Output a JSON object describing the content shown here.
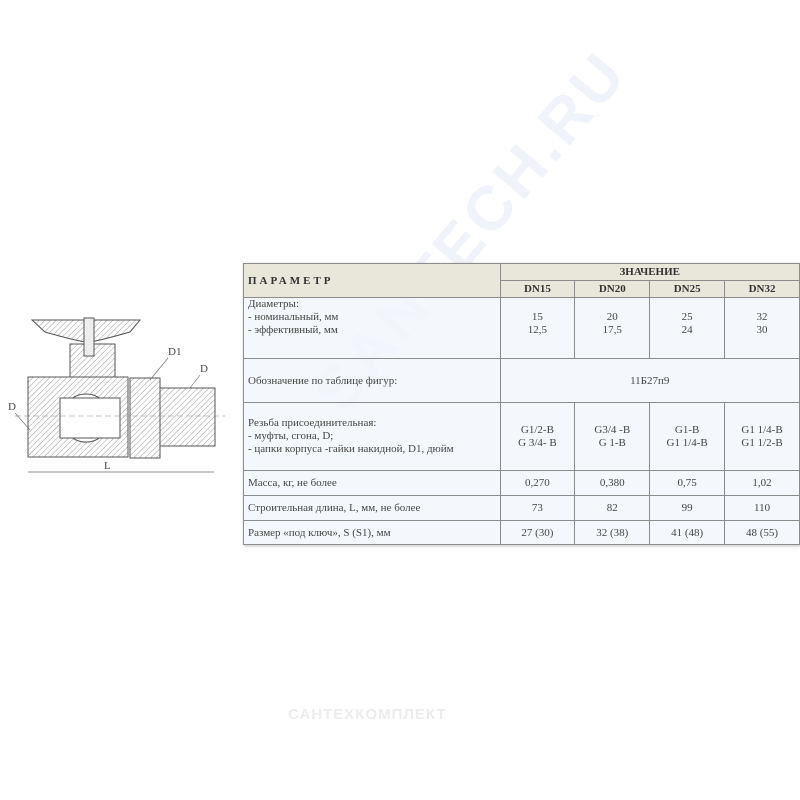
{
  "drawing": {
    "labels": {
      "d1": "D1",
      "d_right": "D",
      "d_left": "D",
      "length": "L"
    }
  },
  "table": {
    "param_header": "ПАРАМЕТР",
    "value_header": "ЗНАЧЕНИЕ",
    "columns": [
      "DN15",
      "DN20",
      "DN25",
      "DN32"
    ],
    "rows": {
      "diameters": {
        "label": [
          "Диаметры:",
          "- номинальный, мм",
          "- эффективный, мм"
        ],
        "values": [
          [
            "15",
            "12,5"
          ],
          [
            "20",
            "17,5"
          ],
          [
            "25",
            "24"
          ],
          [
            "32",
            "30"
          ]
        ]
      },
      "designation": {
        "label": "Обозначение по таблице фигур:",
        "value": "11Б27п9"
      },
      "thread": {
        "label": [
          "Резьба присоединительная:",
          "- муфты, сгона,  D;",
          " - цапки корпуса -гайки накидной, D1, дюйм"
        ],
        "values": [
          [
            "G1/2-B",
            "G 3/4- B"
          ],
          [
            "G3/4 -B",
            "G 1-B"
          ],
          [
            "G1-B",
            "G1 1/4-B"
          ],
          [
            "G1 1/4-B",
            "G1 1/2-B"
          ]
        ]
      },
      "mass": {
        "label": "Масса,  кг,  не более",
        "values": [
          "0,270",
          "0,380",
          "0,75",
          "1,02"
        ]
      },
      "length": {
        "label": "Строительная длина, L, мм, не более",
        "values": [
          "73",
          "82",
          "99",
          "110"
        ]
      },
      "wrench": {
        "label": "Размер «под ключ»,  S (S1),  мм",
        "values": [
          "27 (30)",
          "32 (38)",
          "41 (48)",
          "48 (55)"
        ]
      }
    }
  },
  "watermark": "SANTECH.RU",
  "logo": "САНТЕХКОМПЛЕКТ"
}
